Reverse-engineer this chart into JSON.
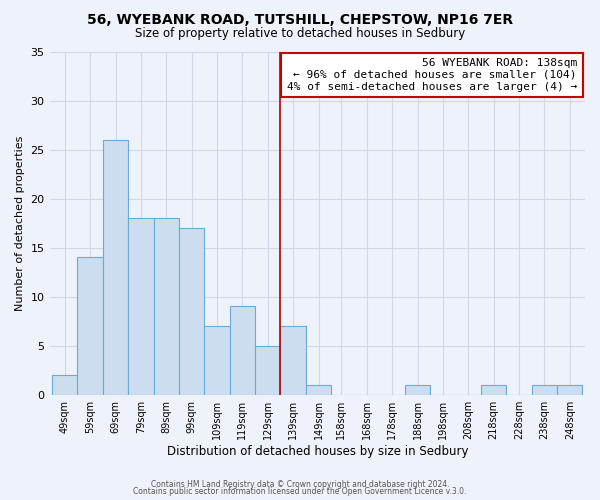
{
  "title": "56, WYEBANK ROAD, TUTSHILL, CHEPSTOW, NP16 7ER",
  "subtitle": "Size of property relative to detached houses in Sedbury",
  "xlabel": "Distribution of detached houses by size in Sedbury",
  "ylabel": "Number of detached properties",
  "bar_color": "#ccddf0",
  "bar_edge_color": "#6aaad4",
  "bin_left_edges": [
    49,
    59,
    69,
    79,
    89,
    99,
    109,
    119,
    129,
    139,
    149,
    158,
    168,
    178,
    188,
    198,
    208,
    218,
    228,
    238,
    248
  ],
  "bin_width": 10,
  "counts": [
    2,
    14,
    26,
    18,
    18,
    17,
    7,
    9,
    5,
    7,
    1,
    0,
    0,
    0,
    1,
    0,
    0,
    1,
    0,
    1,
    1
  ],
  "tick_labels": [
    "49sqm",
    "59sqm",
    "69sqm",
    "79sqm",
    "89sqm",
    "99sqm",
    "109sqm",
    "119sqm",
    "129sqm",
    "139sqm",
    "149sqm",
    "158sqm",
    "168sqm",
    "178sqm",
    "188sqm",
    "198sqm",
    "208sqm",
    "218sqm",
    "228sqm",
    "238sqm",
    "248sqm"
  ],
  "property_line_x": 139,
  "property_line_color": "#bb0000",
  "annotation_title": "56 WYEBANK ROAD: 138sqm",
  "annotation_line1": "← 96% of detached houses are smaller (104)",
  "annotation_line2": "4% of semi-detached houses are larger (4) →",
  "annotation_box_edge": "#cc0000",
  "ylim": [
    0,
    35
  ],
  "yticks": [
    0,
    5,
    10,
    15,
    20,
    25,
    30,
    35
  ],
  "footer1": "Contains HM Land Registry data © Crown copyright and database right 2024.",
  "footer2": "Contains public sector information licensed under the Open Government Licence v.3.0.",
  "background_color": "#eef2fa",
  "grid_color": "#d0d8e8"
}
